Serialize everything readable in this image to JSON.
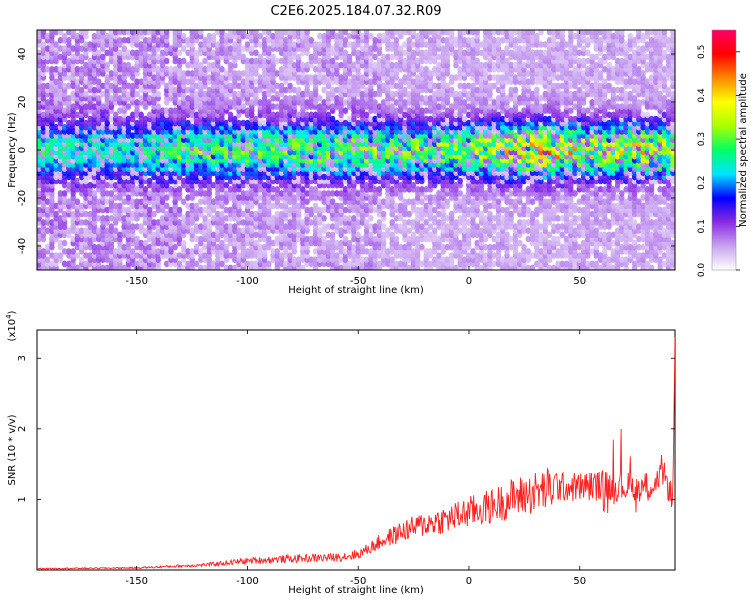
{
  "figure_title": "C2E6.2025.184.07.32.R09",
  "chart_data": [
    {
      "type": "heatmap",
      "title": "C2E6.2025.184.07.32.R09",
      "xlabel": "Height of straight line (km)",
      "ylabel": "Frequency (Hz)",
      "xlim": [
        -195,
        93
      ],
      "ylim": [
        -50,
        50
      ],
      "x_ticks": [
        -150,
        -100,
        -50,
        0,
        50
      ],
      "y_ticks": [
        -40,
        -20,
        0,
        20,
        40
      ],
      "colorbar": {
        "label": "Normalized spectral amplitude",
        "range": [
          0.0,
          0.55
        ],
        "ticks": [
          0.0,
          0.1,
          0.2,
          0.3,
          0.4,
          0.5
        ],
        "colors": [
          "#ffffff",
          "#c8a2f0",
          "#8a2be2",
          "#0000ff",
          "#00e5ff",
          "#00ff66",
          "#aaff00",
          "#ffff00",
          "#ff8800",
          "#ff0000",
          "#ff0066"
        ]
      },
      "ridge": {
        "center_frequency_hz": 0,
        "halfwidth_hz": 8,
        "peak_amplitude_by_height": [
          [
            -195,
            0.22
          ],
          [
            -150,
            0.2
          ],
          [
            -135,
            0.28
          ],
          [
            -100,
            0.28
          ],
          [
            -50,
            0.3
          ],
          [
            0,
            0.32
          ],
          [
            35,
            0.45
          ],
          [
            60,
            0.35
          ],
          [
            80,
            0.4
          ],
          [
            93,
            0.35
          ]
        ]
      }
    },
    {
      "type": "line",
      "xlabel": "Height of straight line (km)",
      "ylabel": "SNR (10 * v/v)",
      "y_multiplier": "(x10^4)",
      "xlim": [
        -195,
        93
      ],
      "ylim": [
        0,
        3.4
      ],
      "x_ticks": [
        -150,
        -100,
        -50,
        0,
        50
      ],
      "y_ticks": [
        1,
        2,
        3
      ],
      "series": [
        {
          "color": "#ff2020",
          "x": [
            -195,
            -150,
            -120,
            -100,
            -80,
            -60,
            -50,
            -40,
            -30,
            -20,
            -10,
            0,
            10,
            20,
            30,
            40,
            50,
            60,
            70,
            80,
            85,
            88,
            90,
            92,
            93
          ],
          "y": [
            0.02,
            0.03,
            0.07,
            0.13,
            0.16,
            0.18,
            0.22,
            0.4,
            0.55,
            0.65,
            0.72,
            0.82,
            0.9,
            1.02,
            1.1,
            1.17,
            1.18,
            1.2,
            1.18,
            1.18,
            1.25,
            1.3,
            1.2,
            1.0,
            3.3
          ]
        }
      ]
    }
  ]
}
